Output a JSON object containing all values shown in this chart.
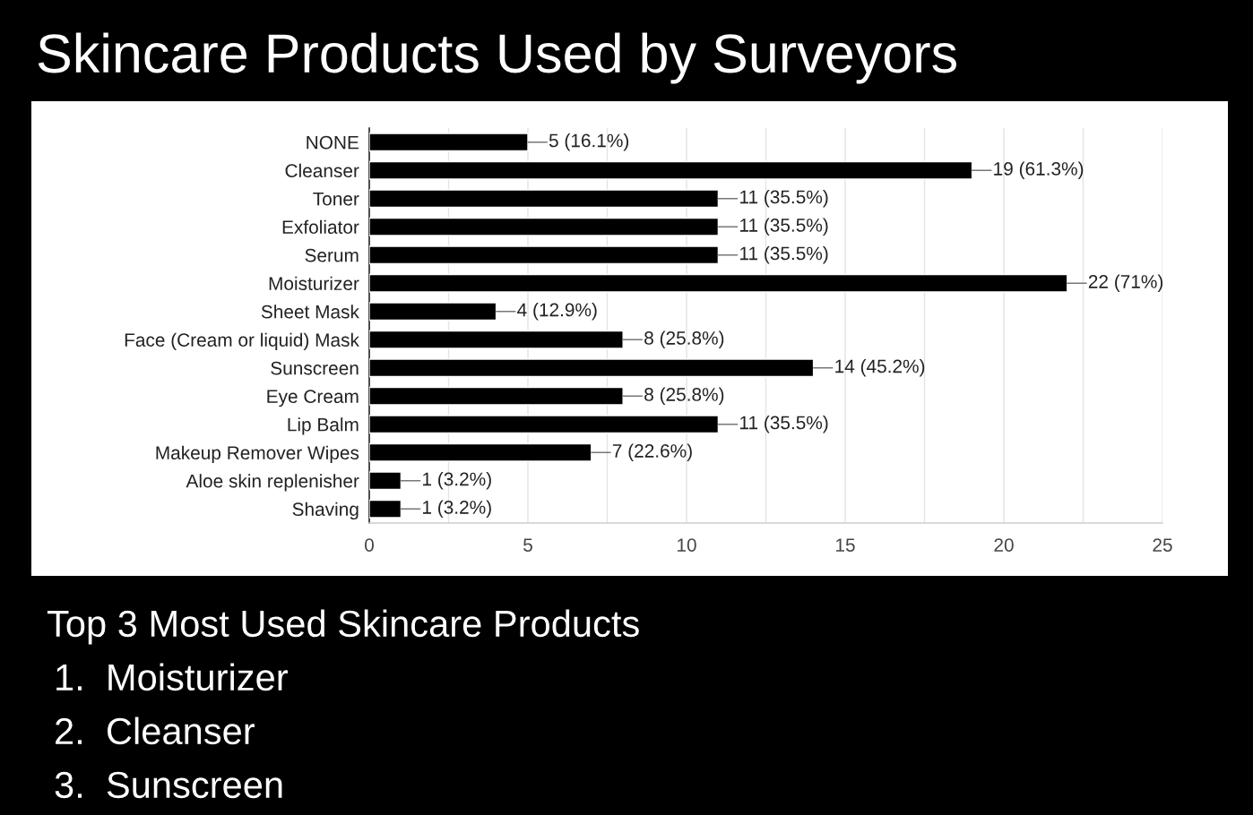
{
  "chart_data": {
    "type": "bar",
    "orientation": "horizontal",
    "title": "Skincare Products Used by Surveyors",
    "categories": [
      "NONE",
      "Cleanser",
      "Toner",
      "Exfoliator",
      "Serum",
      "Moisturizer",
      "Sheet Mask",
      "Face (Cream or liquid) Mask",
      "Sunscreen",
      "Eye Cream",
      "Lip Balm",
      "Makeup Remover Wipes",
      "Aloe skin replenisher",
      "Shaving"
    ],
    "values": [
      5,
      19,
      11,
      11,
      11,
      22,
      4,
      8,
      14,
      8,
      11,
      7,
      1,
      1
    ],
    "value_labels": [
      "5 (16.1%)",
      "19 (61.3%)",
      "11 (35.5%)",
      "11 (35.5%)",
      "11 (35.5%)",
      "22 (71%)",
      "4 (12.9%)",
      "8 (25.8%)",
      "14 (45.2%)",
      "8 (25.8%)",
      "11 (35.5%)",
      "7 (22.6%)",
      "1 (3.2%)",
      "1 (3.2%)"
    ],
    "color": "#000000",
    "xlim": [
      0,
      25
    ],
    "xticks": [
      0,
      {
        "value": 2.5,
        "label": null
      },
      5,
      {
        "value": 7.5,
        "label": null
      },
      10,
      {
        "value": 12.5,
        "label": null
      },
      15,
      {
        "value": 17.5,
        "label": null
      },
      20,
      {
        "value": 22.5,
        "label": null
      },
      25
    ],
    "grid": "x",
    "annotations": [
      "Top 3 Most Used Skincare Products",
      "1.  Moisturizer",
      "2.  Cleanser",
      "3.  Sunscreen"
    ]
  }
}
